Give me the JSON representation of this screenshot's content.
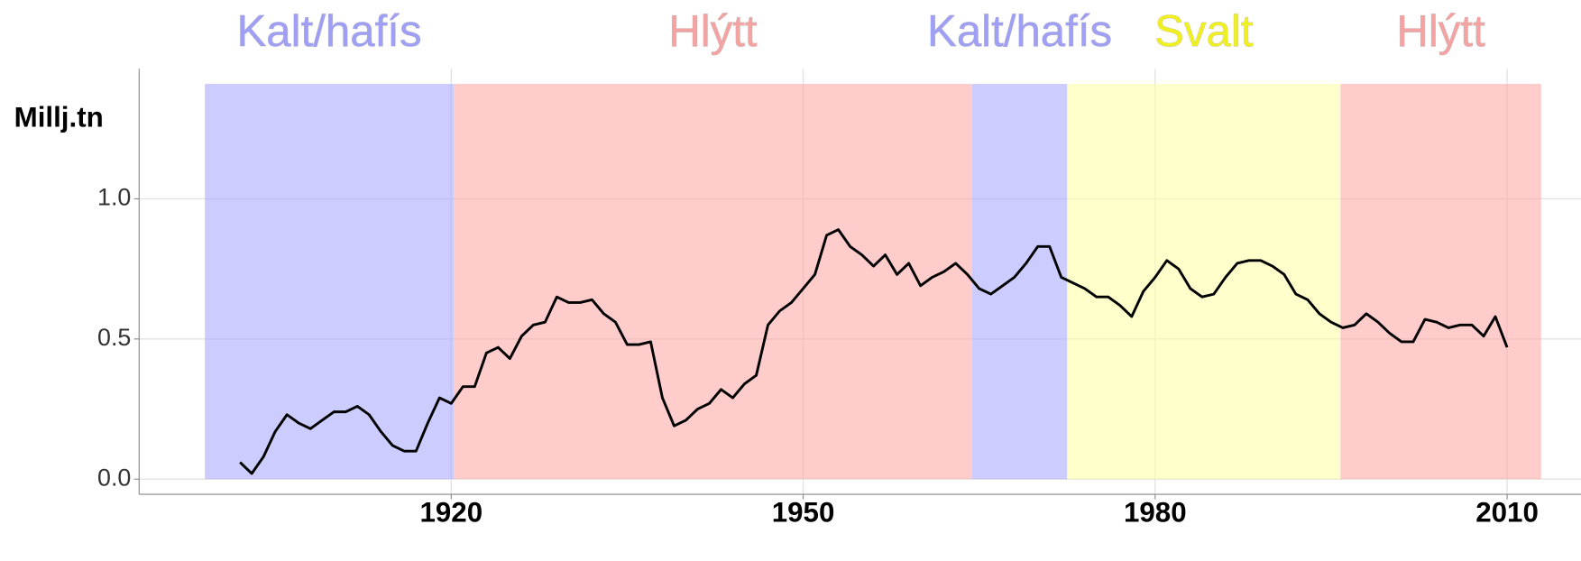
{
  "chart_data": {
    "type": "line",
    "y_label": "Millj.tn",
    "bands": [
      {
        "label": "Kalt/hafís",
        "start": 1899.0,
        "end": 1920.2,
        "color": "#aaaaff"
      },
      {
        "label": "Hlýtt",
        "start": 1920.2,
        "end": 1964.4,
        "color": "#ffaaaa"
      },
      {
        "label": "Kalt/hafís",
        "start": 1964.4,
        "end": 1972.5,
        "color": "#aaaaff"
      },
      {
        "label": "Svalt",
        "start": 1972.5,
        "end": 1995.8,
        "color": "#ffffaa"
      },
      {
        "label": "Hlýtt",
        "start": 1995.8,
        "end": 2012.9,
        "color": "#ffaaaa"
      }
    ],
    "band_top": 1.41,
    "band_label_colors": [
      "#9f9ff5",
      "#f4a3a3",
      "#9f9ff5",
      "#f0f020",
      "#f4a3a3"
    ],
    "x": [
      1902,
      1903,
      1904,
      1905,
      1906,
      1907,
      1908,
      1909,
      1910,
      1911,
      1912,
      1913,
      1914,
      1915,
      1916,
      1917,
      1918,
      1919,
      1920,
      1921,
      1922,
      1923,
      1924,
      1925,
      1926,
      1927,
      1928,
      1929,
      1930,
      1931,
      1932,
      1933,
      1934,
      1935,
      1936,
      1937,
      1938,
      1939,
      1940,
      1941,
      1942,
      1943,
      1944,
      1945,
      1946,
      1947,
      1948,
      1949,
      1950,
      1951,
      1952,
      1953,
      1954,
      1955,
      1956,
      1957,
      1958,
      1959,
      1960,
      1961,
      1962,
      1963,
      1964,
      1965,
      1966,
      1967,
      1968,
      1969,
      1970,
      1971,
      1972,
      1973,
      1974,
      1975,
      1976,
      1977,
      1978,
      1979,
      1980,
      1981,
      1982,
      1983,
      1984,
      1985,
      1986,
      1987,
      1988,
      1989,
      1990,
      1991,
      1992,
      1993,
      1994,
      1995,
      1996,
      1997,
      1998,
      1999,
      2000,
      2001,
      2002,
      2003,
      2004,
      2005,
      2006,
      2007,
      2008,
      2009,
      2010
    ],
    "series": [
      {
        "color": "#000000",
        "values": [
          0.06,
          0.02,
          0.08,
          0.17,
          0.23,
          0.2,
          0.18,
          0.21,
          0.24,
          0.24,
          0.26,
          0.23,
          0.17,
          0.12,
          0.1,
          0.1,
          0.2,
          0.29,
          0.27,
          0.33,
          0.33,
          0.45,
          0.47,
          0.43,
          0.51,
          0.55,
          0.56,
          0.65,
          0.63,
          0.63,
          0.64,
          0.59,
          0.56,
          0.48,
          0.48,
          0.49,
          0.29,
          0.19,
          0.21,
          0.25,
          0.27,
          0.32,
          0.29,
          0.34,
          0.37,
          0.55,
          0.6,
          0.63,
          0.68,
          0.73,
          0.87,
          0.89,
          0.83,
          0.8,
          0.76,
          0.8,
          0.73,
          0.77,
          0.69,
          0.72,
          0.74,
          0.77,
          0.73,
          0.68,
          0.66,
          0.69,
          0.72,
          0.77,
          0.83,
          0.83,
          0.72,
          0.7,
          0.68,
          0.65,
          0.65,
          0.62,
          0.58,
          0.67,
          0.72,
          0.78,
          0.75,
          0.68,
          0.65,
          0.66,
          0.72,
          0.77,
          0.78,
          0.78,
          0.76,
          0.73,
          0.66,
          0.64,
          0.59,
          0.56,
          0.54,
          0.55,
          0.59,
          0.56,
          0.52,
          0.49,
          0.49,
          0.57,
          0.56,
          0.54,
          0.55,
          0.55,
          0.51,
          0.58,
          0.47
        ]
      }
    ],
    "xlim": [
      1893.4,
      2016.3
    ],
    "ylim": [
      -0.054,
      1.464
    ],
    "xticks": [
      1920,
      1950,
      1980,
      2010
    ],
    "yticks": [
      {
        "value": 0,
        "label": "0.0"
      },
      0.5,
      {
        "value": 1,
        "label": "1.0"
      }
    ],
    "grid": true
  }
}
